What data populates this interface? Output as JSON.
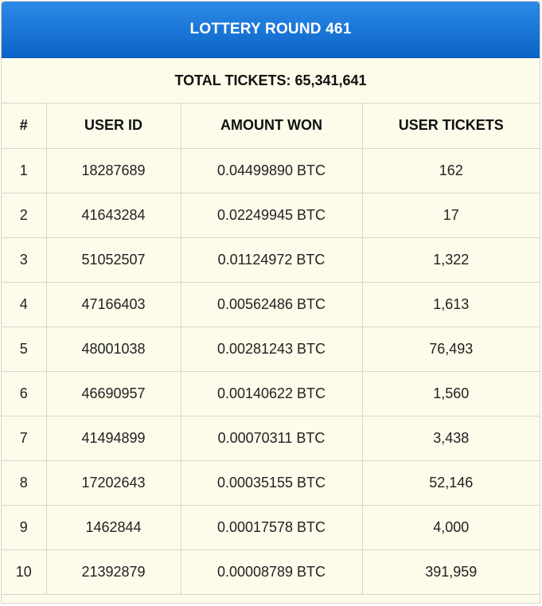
{
  "header": {
    "title": "LOTTERY ROUND 461"
  },
  "summary": {
    "total_tickets": "TOTAL TICKETS: 65,341,641"
  },
  "table": {
    "columns": [
      "#",
      "USER ID",
      "AMOUNT WON",
      "USER TICKETS"
    ],
    "rows": [
      [
        "1",
        "18287689",
        "0.04499890 BTC",
        "162"
      ],
      [
        "2",
        "41643284",
        "0.02249945 BTC",
        "17"
      ],
      [
        "3",
        "51052507",
        "0.01124972 BTC",
        "1,322"
      ],
      [
        "4",
        "47166403",
        "0.00562486 BTC",
        "1,613"
      ],
      [
        "5",
        "48001038",
        "0.00281243 BTC",
        "76,493"
      ],
      [
        "6",
        "46690957",
        "0.00140622 BTC",
        "1,560"
      ],
      [
        "7",
        "41494899",
        "0.00070311 BTC",
        "3,438"
      ],
      [
        "8",
        "17202643",
        "0.00035155 BTC",
        "52,146"
      ],
      [
        "9",
        "1462844",
        "0.00017578 BTC",
        "4,000"
      ],
      [
        "10",
        "21392879",
        "0.00008789 BTC",
        "391,959"
      ]
    ]
  },
  "colors": {
    "header_bg": "#1a75d9",
    "panel_bg": "#fdfbea",
    "border": "#d8d6c8"
  }
}
